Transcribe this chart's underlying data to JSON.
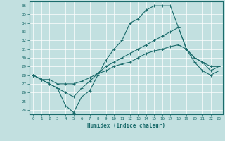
{
  "xlabel": "Humidex (Indice chaleur)",
  "xlim": [
    -0.5,
    23.5
  ],
  "ylim": [
    23.5,
    36.5
  ],
  "yticks": [
    24,
    25,
    26,
    27,
    28,
    29,
    30,
    31,
    32,
    33,
    34,
    35,
    36
  ],
  "xticks": [
    0,
    1,
    2,
    3,
    4,
    5,
    6,
    7,
    8,
    9,
    10,
    11,
    12,
    13,
    14,
    15,
    16,
    17,
    18,
    19,
    20,
    21,
    22,
    23
  ],
  "background_color": "#c2e0e0",
  "line_color": "#1a6b6b",
  "line1_y": [
    28,
    27.5,
    27,
    26.5,
    24.5,
    23.7,
    25.5,
    26.2,
    28.0,
    29.7,
    31.0,
    32.0,
    34.0,
    34.5,
    35.5,
    36.0,
    36.0,
    36.0,
    33.5,
    31.0,
    30.0,
    29.5,
    29.0,
    29.0
  ],
  "line2_y": [
    28,
    27.5,
    27.0,
    26.5,
    26.0,
    25.5,
    26.5,
    27.3,
    28.2,
    29.0,
    29.5,
    30.0,
    30.5,
    31.0,
    31.5,
    32.0,
    32.5,
    33.0,
    33.5,
    31.0,
    30.0,
    29.5,
    28.5,
    29.0
  ],
  "line3_y": [
    28,
    27.5,
    27.5,
    27.0,
    27.0,
    27.0,
    27.3,
    27.7,
    28.2,
    28.5,
    29.0,
    29.3,
    29.5,
    30.0,
    30.5,
    30.8,
    31.0,
    31.3,
    31.5,
    31.0,
    29.5,
    28.5,
    28.0,
    28.5
  ]
}
